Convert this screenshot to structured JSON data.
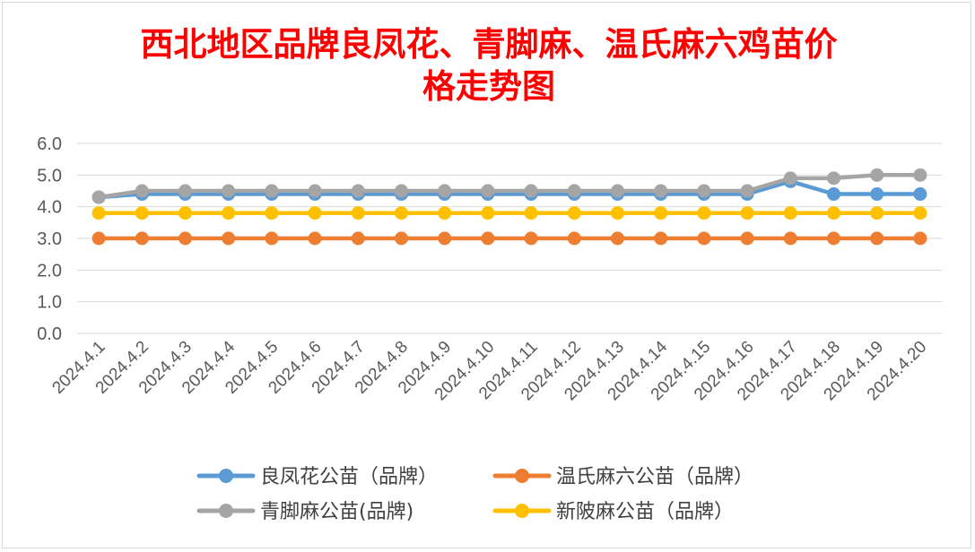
{
  "chart_data": {
    "type": "line",
    "title": [
      "西北地区品牌良凤花、青脚麻、温氏麻六鸡苗价",
      "格走势图"
    ],
    "xlabel": "",
    "ylabel": "",
    "ylim": [
      0,
      6
    ],
    "yticks": [
      "0.0",
      "1.0",
      "2.0",
      "3.0",
      "4.0",
      "5.0",
      "6.0"
    ],
    "grid": true,
    "legend_position": "bottom",
    "categories": [
      "2024.4.1",
      "2024.4.2",
      "2024.4.3",
      "2024.4.4",
      "2024.4.5",
      "2024.4.6",
      "2024.4.7",
      "2024.4.8",
      "2024.4.9",
      "2024.4.10",
      "2024.4.11",
      "2024.4.12",
      "2024.4.13",
      "2024.4.14",
      "2024.4.15",
      "2024.4.16",
      "2024.4.17",
      "2024.4.18",
      "2024.4.19",
      "2024.4.20"
    ],
    "series": [
      {
        "name": "良凤花公苗（品牌）",
        "color": "#5b9bd5",
        "values": [
          4.3,
          4.4,
          4.4,
          4.4,
          4.4,
          4.4,
          4.4,
          4.4,
          4.4,
          4.4,
          4.4,
          4.4,
          4.4,
          4.4,
          4.4,
          4.4,
          4.8,
          4.4,
          4.4,
          4.4
        ]
      },
      {
        "name": "温氏麻六公苗（品牌）",
        "color": "#ed7d31",
        "values": [
          3.0,
          3.0,
          3.0,
          3.0,
          3.0,
          3.0,
          3.0,
          3.0,
          3.0,
          3.0,
          3.0,
          3.0,
          3.0,
          3.0,
          3.0,
          3.0,
          3.0,
          3.0,
          3.0,
          3.0
        ]
      },
      {
        "name": "青脚麻公苗(品牌)",
        "color": "#a5a5a5",
        "values": [
          4.3,
          4.5,
          4.5,
          4.5,
          4.5,
          4.5,
          4.5,
          4.5,
          4.5,
          4.5,
          4.5,
          4.5,
          4.5,
          4.5,
          4.5,
          4.5,
          4.9,
          4.9,
          5.0,
          5.0
        ]
      },
      {
        "name": "新陂麻公苗（品牌）",
        "color": "#ffc000",
        "values": [
          3.8,
          3.8,
          3.8,
          3.8,
          3.8,
          3.8,
          3.8,
          3.8,
          3.8,
          3.8,
          3.8,
          3.8,
          3.8,
          3.8,
          3.8,
          3.8,
          3.8,
          3.8,
          3.8,
          3.8
        ]
      }
    ],
    "draw_order": [
      0,
      1,
      3,
      2
    ],
    "legend_order": [
      0,
      1,
      2,
      3
    ]
  }
}
